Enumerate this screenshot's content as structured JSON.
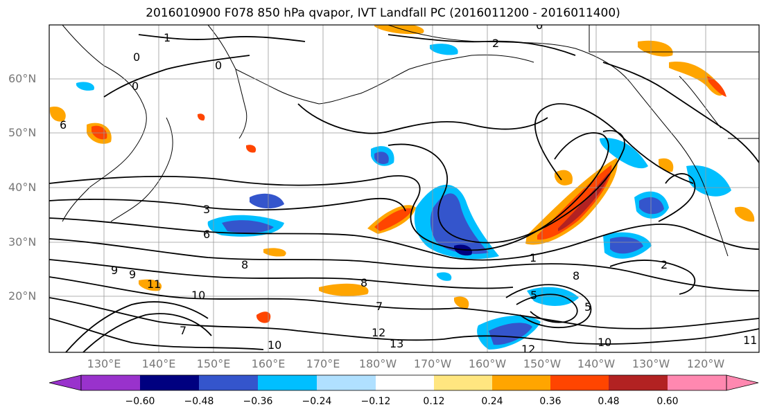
{
  "title": "2016010900 F078 850 hPa qvapor, IVT Landfall PC (2016011200 - 2016011400)",
  "lat_labels": [
    "60°N",
    "50°N",
    "40°N",
    "30°N",
    "20°N"
  ],
  "lon_labels": [
    "130°E",
    "140°E",
    "150°E",
    "160°E",
    "170°E",
    "180°W",
    "170°W",
    "160°W",
    "150°W",
    "140°W",
    "130°W",
    "120°W"
  ],
  "colorbar": {
    "ticks": [
      "−0.60",
      "−0.48",
      "−0.36",
      "−0.24",
      "−0.12",
      "0.12",
      "0.24",
      "0.36",
      "0.48",
      "0.60"
    ],
    "colors": [
      "#9932cc",
      "#000080",
      "#3455cc",
      "#00bfff",
      "#b0e0ff",
      "#ffffff",
      "#ffe680",
      "#ffa500",
      "#ff4500",
      "#b22222",
      "#ff88b0"
    ]
  },
  "contour_labels": [
    "1",
    "0",
    "0",
    "0",
    "2",
    "3",
    "6",
    "8",
    "9",
    "10",
    "11",
    "12",
    "13",
    "10",
    "12",
    "7",
    "8",
    "5",
    "2",
    "8",
    "10",
    "11",
    "5",
    "7",
    "1",
    "0",
    "9",
    "6"
  ]
}
